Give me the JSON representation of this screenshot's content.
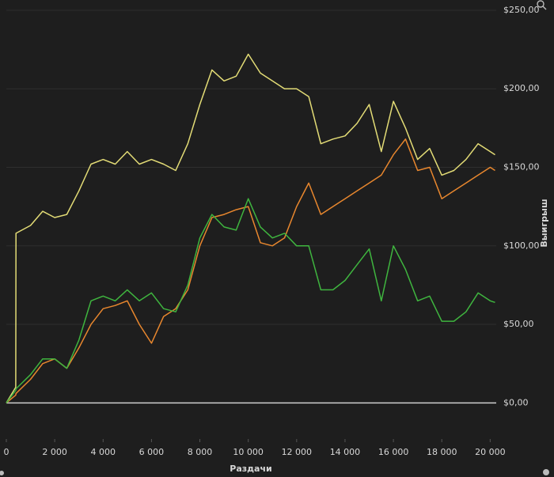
{
  "chart_data": {
    "type": "line",
    "x_label": "Раздачи",
    "y_label": "Выигрыш",
    "x": [
      0,
      390,
      400,
      1000,
      1500,
      2000,
      2500,
      3000,
      3500,
      4000,
      4500,
      5000,
      5500,
      6000,
      6500,
      7000,
      7500,
      8000,
      8500,
      9000,
      9500,
      10000,
      10500,
      11000,
      11500,
      12000,
      12500,
      13000,
      13500,
      14000,
      14500,
      15000,
      15500,
      16000,
      16500,
      17000,
      17500,
      18000,
      18500,
      19000,
      19500,
      20000,
      20200
    ],
    "series": [
      {
        "color": "#e3dc76",
        "values": [
          0,
          10,
          108,
          113,
          122,
          118,
          120,
          135,
          152,
          155,
          152,
          160,
          152,
          155,
          152,
          148,
          165,
          190,
          212,
          205,
          208,
          222,
          210,
          205,
          200,
          200,
          195,
          165,
          168,
          170,
          178,
          190,
          160,
          192,
          175,
          155,
          162,
          145,
          148,
          155,
          165,
          160,
          158
        ]
      },
      {
        "color": "#e8872e",
        "values": [
          0,
          5,
          6,
          15,
          25,
          28,
          22,
          35,
          50,
          60,
          62,
          65,
          50,
          38,
          55,
          60,
          72,
          100,
          118,
          120,
          123,
          125,
          102,
          100,
          105,
          125,
          140,
          120,
          125,
          130,
          135,
          140,
          145,
          158,
          168,
          148,
          150,
          130,
          135,
          140,
          145,
          150,
          148
        ]
      },
      {
        "color": "#3fb53f",
        "values": [
          0,
          8,
          9,
          18,
          28,
          28,
          22,
          40,
          65,
          68,
          65,
          72,
          65,
          70,
          60,
          58,
          75,
          105,
          120,
          112,
          110,
          130,
          112,
          105,
          108,
          100,
          100,
          72,
          72,
          78,
          88,
          98,
          65,
          100,
          85,
          65,
          68,
          52,
          52,
          58,
          70,
          65,
          64
        ]
      }
    ],
    "xlim": [
      0,
      20250
    ],
    "ylim": [
      -23,
      254
    ],
    "xticks": [
      0,
      {
        "value": 2000,
        "label": "2 000"
      },
      {
        "value": 4000,
        "label": "4 000"
      },
      {
        "value": 6000,
        "label": "6 000"
      },
      {
        "value": 8000,
        "label": "8 000"
      },
      {
        "value": 10000,
        "label": "10 000"
      },
      {
        "value": 12000,
        "label": "12 000"
      },
      {
        "value": 14000,
        "label": "14 000"
      },
      {
        "value": 16000,
        "label": "16 000"
      },
      {
        "value": 18000,
        "label": "18 000"
      },
      {
        "value": 20000,
        "label": "20 000"
      }
    ],
    "yticks": [
      {
        "value": 0,
        "label": "$0,00"
      },
      {
        "value": 50,
        "label": "$50,00"
      },
      {
        "value": 100,
        "label": "$100,00"
      },
      {
        "value": 150,
        "label": "$150,00"
      },
      {
        "value": 200,
        "label": "$200,00"
      },
      {
        "value": 250,
        "label": "$250,00"
      }
    ],
    "grid": true
  }
}
